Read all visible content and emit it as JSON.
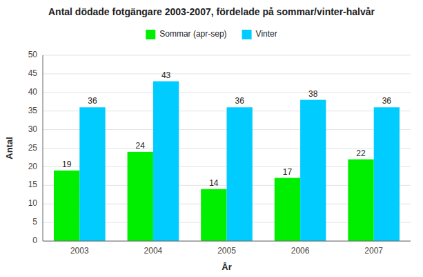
{
  "chart_data": {
    "type": "bar",
    "title": "Antal dödade fotgängare 2003-2007, fördelade på sommar/vinter-halvår",
    "xlabel": "År",
    "ylabel": "Antal",
    "categories": [
      "2003",
      "2004",
      "2005",
      "2006",
      "2007"
    ],
    "series": [
      {
        "name": "Sommar (apr-sep)",
        "color": "#00ee00",
        "values": [
          19,
          24,
          14,
          17,
          22
        ]
      },
      {
        "name": "Vinter",
        "color": "#00ccff",
        "values": [
          36,
          43,
          36,
          38,
          36
        ]
      }
    ],
    "ylim": [
      0,
      50
    ],
    "yticks": [
      0,
      5,
      10,
      15,
      20,
      25,
      30,
      35,
      40,
      45,
      50
    ],
    "grid": true,
    "legend": "top",
    "data_labels": true
  }
}
